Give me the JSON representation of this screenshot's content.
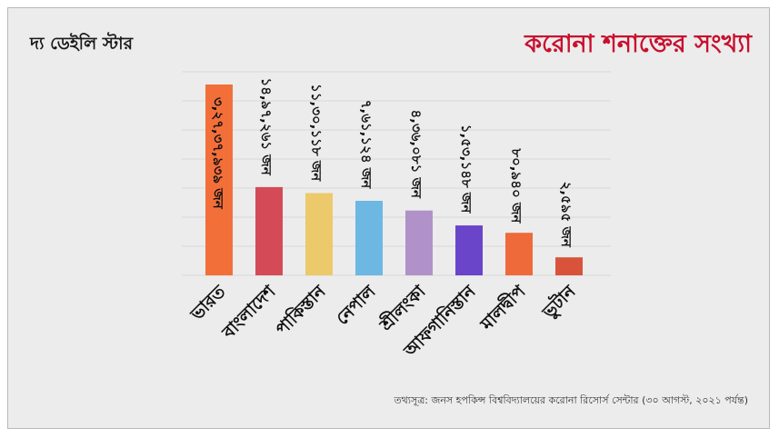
{
  "logo_text": "দ্য ডেইলি স্টার",
  "source_text": "তথ্যসূত্র:  জনস হপকিন্স বিশ্ববিদ্যালয়ের করোনা রিসোর্স সেন্টার (৩০ আগস্ট, ২০২১ পর্যন্ত)",
  "chart_data": {
    "type": "bar",
    "title": "করোনা শনাক্তের সংখ্যা",
    "categories": [
      "ভারত",
      "বাংলাদেশ",
      "পাকিস্তান",
      "নেপাল",
      "শ্রীলংকা",
      "আফগানিস্তান",
      "মালদ্বীপ",
      "ভুটান"
    ],
    "values": [
      32737939,
      1497261,
      1130118,
      761124,
      436081,
      153148,
      80940,
      2595
    ],
    "data_labels": [
      "৩,২৭,৩৭,৯৩৯ জন",
      "১৪,৯৭,২৬১ জন",
      "১১,৩০,১১৮ জন",
      "৭,৬১,১২৪ জন",
      "৪,৩৬,০৮১ জন",
      "১,৫৩,১৪৮ জন",
      "৮০,৯৪০ জন",
      "২,৫৯৫ জন"
    ],
    "colors": [
      "#f36f3a",
      "#d44b57",
      "#ecc96b",
      "#6cb8e3",
      "#b092c9",
      "#6a44c9",
      "#ef6a3a",
      "#d9533a"
    ],
    "grid": true,
    "legend": "none"
  }
}
